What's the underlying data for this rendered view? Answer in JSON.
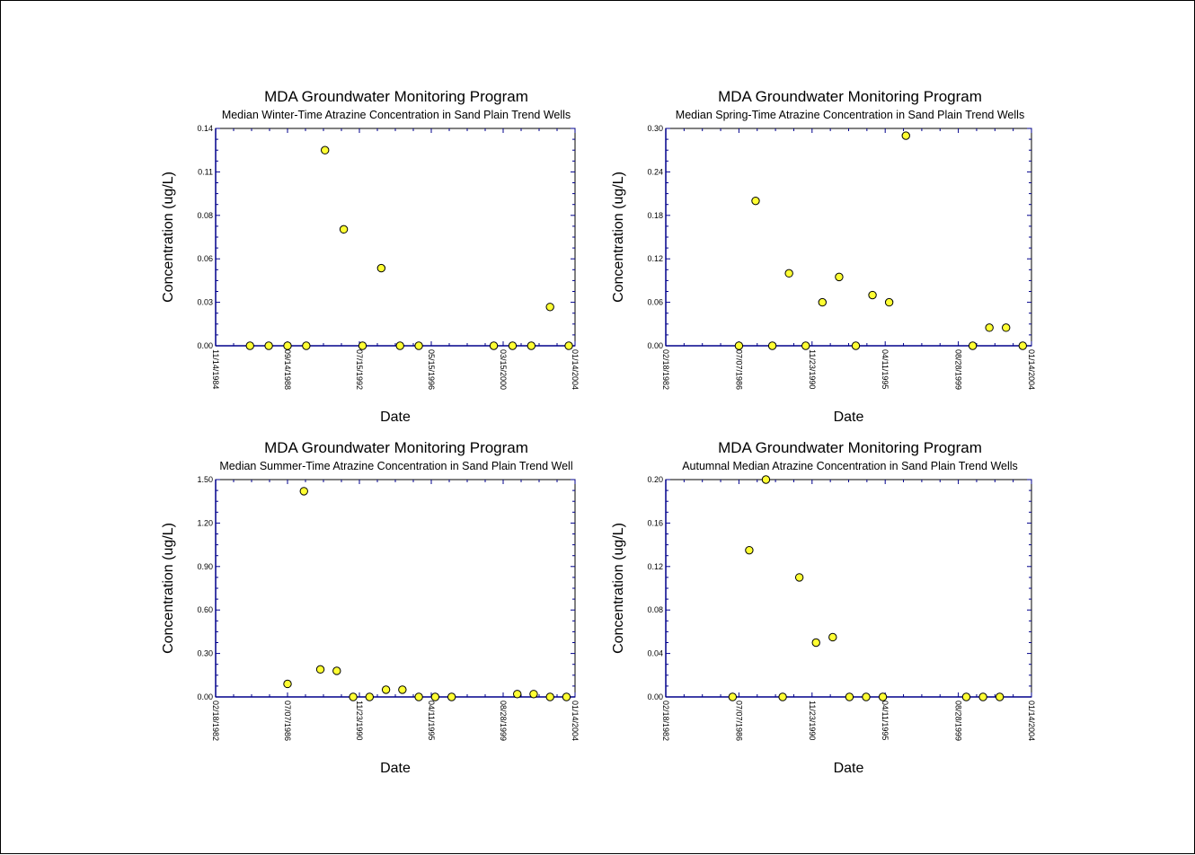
{
  "chart_data": [
    {
      "type": "scatter",
      "title": "MDA Groundwater Monitoring Program",
      "subtitle": "Median Winter-Time Atrazine Concentration in Sand Plain Trend Wells",
      "xlabel": "Date",
      "ylabel": "Concentration (ug/L)",
      "xlim": [
        "1984-11-14",
        "2004-01-14"
      ],
      "ylim": [
        0,
        0.14
      ],
      "x_ticks": [
        "11/14/1984",
        "09/14/1988",
        "07/15/1992",
        "05/15/1996",
        "03/15/2000",
        "01/14/2004"
      ],
      "y_ticks": [
        "0.00",
        "0.03",
        "0.06",
        "0.08",
        "0.11",
        "0.14"
      ],
      "x_minor_per_major": 4,
      "y_minor_per_major": 4,
      "marker_color": "#ffff33",
      "points": [
        {
          "x": "1986-09-14",
          "y": 0.0
        },
        {
          "x": "1987-09-14",
          "y": 0.0
        },
        {
          "x": "1988-09-14",
          "y": 0.0
        },
        {
          "x": "1989-09-14",
          "y": 0.0
        },
        {
          "x": "1990-09-14",
          "y": 0.126
        },
        {
          "x": "1991-09-14",
          "y": 0.075
        },
        {
          "x": "1992-09-14",
          "y": 0.0
        },
        {
          "x": "1993-09-14",
          "y": 0.05
        },
        {
          "x": "1994-09-14",
          "y": 0.0
        },
        {
          "x": "1995-09-14",
          "y": 0.0
        },
        {
          "x": "1999-09-14",
          "y": 0.0
        },
        {
          "x": "2000-09-14",
          "y": 0.0
        },
        {
          "x": "2001-09-14",
          "y": 0.0
        },
        {
          "x": "2002-09-14",
          "y": 0.025
        },
        {
          "x": "2003-09-14",
          "y": 0.0
        }
      ]
    },
    {
      "type": "scatter",
      "title": "MDA Groundwater Monitoring Program",
      "subtitle": "Median Spring-Time Atrazine Concentration in Sand Plain Trend Wells",
      "xlabel": "Date",
      "ylabel": "Concentration (ug/L)",
      "xlim": [
        "1982-02-18",
        "2004-01-14"
      ],
      "ylim": [
        0,
        0.3
      ],
      "x_ticks": [
        "02/18/1982",
        "07/07/1986",
        "11/23/1990",
        "04/11/1995",
        "08/28/1999",
        "01/14/2004"
      ],
      "y_ticks": [
        "0.00",
        "0.06",
        "0.12",
        "0.18",
        "0.24",
        "0.30"
      ],
      "x_minor_per_major": 4,
      "y_minor_per_major": 4,
      "marker_color": "#ffff33",
      "points": [
        {
          "x": "1986-07-07",
          "y": 0.0
        },
        {
          "x": "1987-07-07",
          "y": 0.2
        },
        {
          "x": "1988-07-07",
          "y": 0.0
        },
        {
          "x": "1989-07-07",
          "y": 0.1
        },
        {
          "x": "1990-07-07",
          "y": 0.0
        },
        {
          "x": "1991-07-07",
          "y": 0.06
        },
        {
          "x": "1992-07-07",
          "y": 0.095
        },
        {
          "x": "1993-07-07",
          "y": 0.0
        },
        {
          "x": "1994-07-07",
          "y": 0.07
        },
        {
          "x": "1995-07-07",
          "y": 0.06
        },
        {
          "x": "1996-07-07",
          "y": 0.29
        },
        {
          "x": "2000-07-07",
          "y": 0.0
        },
        {
          "x": "2001-07-07",
          "y": 0.025
        },
        {
          "x": "2002-07-07",
          "y": 0.025
        },
        {
          "x": "2003-07-07",
          "y": 0.0
        }
      ]
    },
    {
      "type": "scatter",
      "title": "MDA Groundwater Monitoring Program",
      "subtitle": "Median Summer-Time Atrazine Concentration in Sand Plain Trend Well",
      "xlabel": "Date",
      "ylabel": "Concentration (ug/L)",
      "xlim": [
        "1982-02-18",
        "2004-01-14"
      ],
      "ylim": [
        0,
        1.5
      ],
      "x_ticks": [
        "02/18/1982",
        "07/07/1986",
        "11/23/1990",
        "04/11/1995",
        "08/28/1999",
        "01/14/2004"
      ],
      "y_ticks": [
        "0.00",
        "0.30",
        "0.60",
        "0.90",
        "1.20",
        "1.50"
      ],
      "x_minor_per_major": 4,
      "y_minor_per_major": 4,
      "marker_color": "#ffff33",
      "points": [
        {
          "x": "1986-07-07",
          "y": 0.09
        },
        {
          "x": "1987-07-07",
          "y": 1.42
        },
        {
          "x": "1988-07-07",
          "y": 0.19
        },
        {
          "x": "1989-07-07",
          "y": 0.18
        },
        {
          "x": "1990-07-07",
          "y": 0.0
        },
        {
          "x": "1991-07-07",
          "y": 0.0
        },
        {
          "x": "1992-07-07",
          "y": 0.05
        },
        {
          "x": "1993-07-07",
          "y": 0.05
        },
        {
          "x": "1994-07-07",
          "y": 0.0
        },
        {
          "x": "1995-07-07",
          "y": 0.0
        },
        {
          "x": "1996-07-07",
          "y": 0.0
        },
        {
          "x": "2000-07-07",
          "y": 0.02
        },
        {
          "x": "2001-07-07",
          "y": 0.02
        },
        {
          "x": "2002-07-07",
          "y": 0.0
        },
        {
          "x": "2003-07-07",
          "y": 0.0
        }
      ]
    },
    {
      "type": "scatter",
      "title": "MDA Groundwater Monitoring Program",
      "subtitle": "Autumnal Median Atrazine Concentration in Sand Plain Trend Wells",
      "xlabel": "Date",
      "ylabel": "Concentration (ug/L)",
      "xlim": [
        "1982-02-18",
        "2004-01-14"
      ],
      "ylim": [
        0,
        0.2
      ],
      "x_ticks": [
        "02/18/1982",
        "07/07/1986",
        "11/23/1990",
        "04/11/1995",
        "08/28/1999",
        "01/14/2004"
      ],
      "y_ticks": [
        "0.00",
        "0.04",
        "0.08",
        "0.12",
        "0.16",
        "0.20"
      ],
      "x_minor_per_major": 4,
      "y_minor_per_major": 4,
      "marker_color": "#ffff33",
      "points": [
        {
          "x": "1986-02-18",
          "y": 0.0
        },
        {
          "x": "1987-02-18",
          "y": 0.135
        },
        {
          "x": "1988-02-18",
          "y": 0.2
        },
        {
          "x": "1989-02-18",
          "y": 0.0
        },
        {
          "x": "1990-02-18",
          "y": 0.11
        },
        {
          "x": "1991-02-18",
          "y": 0.05
        },
        {
          "x": "1992-02-18",
          "y": 0.055
        },
        {
          "x": "1993-02-18",
          "y": 0.0
        },
        {
          "x": "1994-02-18",
          "y": 0.0
        },
        {
          "x": "1995-02-18",
          "y": 0.0
        },
        {
          "x": "2000-02-18",
          "y": 0.0
        },
        {
          "x": "2001-02-18",
          "y": 0.0
        },
        {
          "x": "2002-02-18",
          "y": 0.0
        }
      ]
    }
  ]
}
